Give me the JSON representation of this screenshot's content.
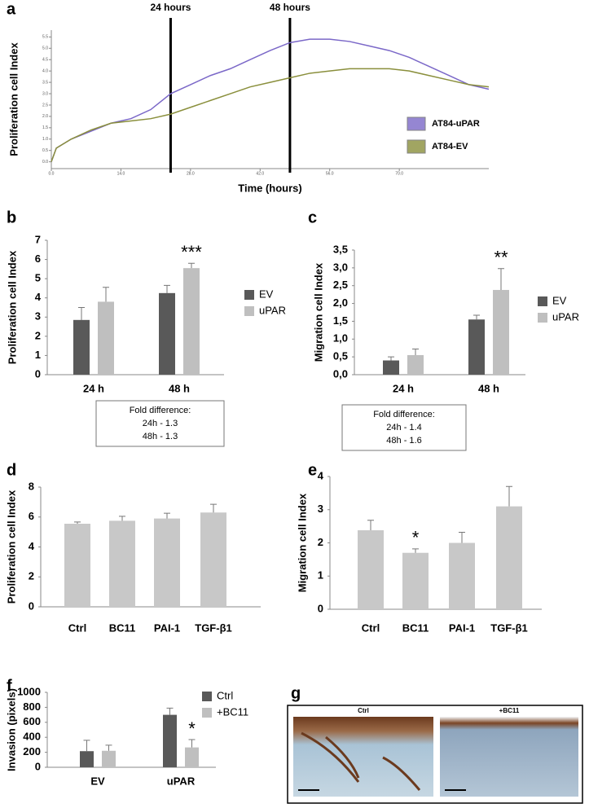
{
  "chart_data": [
    {
      "type": "line",
      "panel": "a",
      "ylabel": "Proliferation cell Index",
      "xlabel": "Time (hours)",
      "x": [
        0,
        1,
        4,
        8,
        12,
        16,
        20,
        24,
        28,
        32,
        36,
        40,
        44,
        48,
        52,
        56,
        60,
        64,
        68,
        72,
        76,
        80,
        84,
        88
      ],
      "series": [
        {
          "name": "AT84-uPAR",
          "color": "#7b68c8",
          "values": [
            0,
            0.6,
            1.0,
            1.35,
            1.7,
            1.9,
            2.3,
            3.0,
            3.4,
            3.8,
            4.1,
            4.5,
            4.9,
            5.25,
            5.4,
            5.4,
            5.3,
            5.1,
            4.9,
            4.6,
            4.2,
            3.8,
            3.4,
            3.2
          ]
        },
        {
          "name": "AT84-EV",
          "color": "#8a8f3c",
          "values": [
            0,
            0.6,
            1.0,
            1.4,
            1.7,
            1.8,
            1.9,
            2.1,
            2.4,
            2.7,
            3.0,
            3.3,
            3.5,
            3.7,
            3.9,
            4.0,
            4.1,
            4.1,
            4.1,
            4.0,
            3.8,
            3.6,
            3.4,
            3.3
          ]
        }
      ],
      "xlim": [
        0,
        88
      ],
      "xticks": [
        {
          "value": 0,
          "label": "0.0"
        },
        {
          "value": 14,
          "label": "14.0"
        },
        {
          "value": 28,
          "label": "28.0"
        },
        {
          "value": 42,
          "label": "42.0"
        },
        {
          "value": 56,
          "label": "56.0"
        },
        {
          "value": 70,
          "label": "70.0"
        }
      ],
      "ylim": [
        -0.3,
        5.8
      ],
      "yticks": [
        {
          "value": 0,
          "label": "0.0"
        },
        {
          "value": 0.5,
          "label": "0.5"
        },
        {
          "value": 1,
          "label": "1.0"
        },
        {
          "value": 1.5,
          "label": "1.5"
        },
        {
          "value": 2,
          "label": "2.0"
        },
        {
          "value": 2.5,
          "label": "2.5"
        },
        {
          "value": 3,
          "label": "3.0"
        },
        {
          "value": 3.5,
          "label": "3.5"
        },
        {
          "value": 4,
          "label": "4.0"
        },
        {
          "value": 4.5,
          "label": "4.5"
        },
        {
          "value": 5,
          "label": "5.0"
        },
        {
          "value": 5.5,
          "label": "5.5"
        }
      ],
      "annotations": [
        {
          "x": 24,
          "label": "24 hours"
        },
        {
          "x": 48,
          "label": "48 hours"
        }
      ]
    },
    {
      "type": "bar",
      "panel": "b",
      "ylabel": "Proliferation cell Index",
      "categories": [
        "24 h",
        "48 h"
      ],
      "series": [
        {
          "name": "EV",
          "color": "#595959",
          "values": [
            2.85,
            4.25
          ],
          "errors": [
            0.65,
            0.4
          ]
        },
        {
          "name": "uPAR",
          "color": "#bfbfbf",
          "values": [
            3.8,
            5.55
          ],
          "errors": [
            0.75,
            0.25
          ]
        }
      ],
      "ylim": [
        0,
        7
      ],
      "yticks": [
        0,
        1,
        2,
        3,
        4,
        5,
        6,
        7
      ],
      "annotations": [
        {
          "text": "***",
          "category": 1,
          "series": 1
        }
      ],
      "note": [
        "Fold difference:",
        "24h - 1.3",
        "48h - 1.3"
      ]
    },
    {
      "type": "bar",
      "panel": "c",
      "ylabel": "Migration cell Index",
      "categories": [
        "24 h",
        "48 h"
      ],
      "series": [
        {
          "name": "EV",
          "color": "#595959",
          "values": [
            0.4,
            1.55
          ],
          "errors": [
            0.1,
            0.12
          ]
        },
        {
          "name": "uPAR",
          "color": "#bfbfbf",
          "values": [
            0.55,
            2.38
          ],
          "errors": [
            0.17,
            0.6
          ]
        }
      ],
      "ylim": [
        0,
        3.5
      ],
      "yticks": [
        {
          "value": 0,
          "label": "0,0"
        },
        {
          "value": 0.5,
          "label": "0,5"
        },
        {
          "value": 1,
          "label": "1,0"
        },
        {
          "value": 1.5,
          "label": "1,5"
        },
        {
          "value": 2,
          "label": "2,0"
        },
        {
          "value": 2.5,
          "label": "2,5"
        },
        {
          "value": 3,
          "label": "3,0"
        },
        {
          "value": 3.5,
          "label": "3,5"
        }
      ],
      "annotations": [
        {
          "text": "**",
          "category": 1,
          "series": 1
        }
      ],
      "note": [
        "Fold difference:",
        "24h - 1.4",
        "48h - 1.6"
      ]
    },
    {
      "type": "bar",
      "panel": "d",
      "ylabel": "Proliferation cell Index",
      "categories": [
        "Ctrl",
        "BC11",
        "PAI-1",
        "TGF-β1"
      ],
      "series": [
        {
          "color": "#c8c8c8",
          "values": [
            5.55,
            5.75,
            5.9,
            6.3
          ],
          "errors": [
            0.12,
            0.3,
            0.35,
            0.55
          ]
        }
      ],
      "ylim": [
        0,
        8
      ],
      "yticks": [
        0,
        2,
        4,
        6,
        8
      ]
    },
    {
      "type": "bar",
      "panel": "e",
      "ylabel": "Migration cell Index",
      "categories": [
        "Ctrl",
        "BC11",
        "PAI-1",
        "TGF-β1"
      ],
      "series": [
        {
          "color": "#c8c8c8",
          "values": [
            2.38,
            1.7,
            2.0,
            3.1
          ],
          "errors": [
            0.3,
            0.12,
            0.32,
            0.6
          ]
        }
      ],
      "ylim": [
        0,
        4
      ],
      "yticks": [
        0,
        1,
        2,
        3,
        4
      ],
      "annotations": [
        {
          "text": "*",
          "category": 1,
          "series": 0
        }
      ]
    },
    {
      "type": "bar",
      "panel": "f",
      "ylabel": "Invasion (pixels)",
      "categories": [
        "EV",
        "uPAR"
      ],
      "series": [
        {
          "name": "Ctrl",
          "color": "#595959",
          "values": [
            215,
            700
          ],
          "errors": [
            145,
            90
          ]
        },
        {
          "name": "+BC11",
          "color": "#bfbfbf",
          "values": [
            220,
            265
          ],
          "errors": [
            75,
            105
          ]
        }
      ],
      "ylim": [
        0,
        1000
      ],
      "yticks": [
        0,
        200,
        400,
        600,
        800,
        1000
      ],
      "annotations": [
        {
          "text": "*",
          "category": 1,
          "series": 1
        }
      ]
    }
  ],
  "images": {
    "panel": "g",
    "labels": [
      "Ctrl",
      "+BC11"
    ]
  }
}
